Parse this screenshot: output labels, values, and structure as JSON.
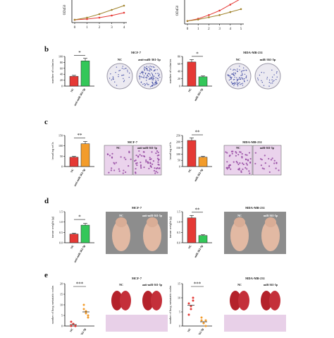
{
  "figure": {
    "panels": [
      {
        "letter": "b"
      },
      {
        "letter": "c"
      },
      {
        "letter": "d"
      },
      {
        "letter": "e"
      }
    ],
    "top_strip": {
      "ylabel_left": "OD450",
      "ylabel_right": "OD450",
      "xticks_left": [
        "0",
        "1",
        "2",
        "3",
        "4"
      ],
      "xticks_right": [
        "0",
        "1",
        "2",
        "3",
        "4",
        "5"
      ],
      "series_colors": {
        "red": "#e53935",
        "olive": "#a1842e"
      },
      "left_red": [
        0.2,
        0.25,
        0.35,
        0.5,
        0.7
      ],
      "left_olive": [
        0.2,
        0.35,
        0.6,
        0.9,
        1.2
      ],
      "right_red": [
        0.2,
        0.35,
        0.6,
        0.9,
        1.3,
        1.7
      ],
      "right_olive": [
        0.2,
        0.3,
        0.45,
        0.6,
        0.8,
        1.0
      ]
    },
    "cell_lines": {
      "left": "MCF-7",
      "right": "MDA-MB-231"
    },
    "group_labels": {
      "nc": "NC",
      "anti": "anti-miR-361-5p",
      "mimic": "miR-361-5p"
    },
    "b": {
      "left": {
        "ylabel": "number of colonies",
        "yticks": [
          "0",
          "20",
          "40",
          "60",
          "80",
          "100"
        ],
        "sig": "*"
      },
      "right": {
        "ylabel": "number of colonies",
        "yticks": [
          "0",
          "20",
          "40",
          "60",
          "80"
        ],
        "sig": "*"
      }
    },
    "c": {
      "left": {
        "ylabel": "invading cells",
        "yticks": [
          "0",
          "50",
          "100",
          "150"
        ],
        "sig": "**"
      },
      "right": {
        "ylabel": "invading cells",
        "yticks": [
          "0",
          "50",
          "100",
          "150",
          "200",
          "250"
        ],
        "sig": "**"
      }
    },
    "d": {
      "left": {
        "ylabel": "tumor weight (g)",
        "yticks": [
          "0.0",
          "0.5",
          "1.0",
          "1.5"
        ],
        "sig": "*"
      },
      "right": {
        "ylabel": "tumor weight (g)",
        "yticks": [
          "0.0",
          "0.5",
          "1.0",
          "1.5"
        ],
        "sig": "**"
      }
    },
    "e": {
      "left": {
        "ylabel": "number of lung metastatic nodes",
        "yticks": [
          "0",
          "5",
          "10",
          "15",
          "20"
        ],
        "sig": "***"
      },
      "right": {
        "ylabel": "number of lung metastatic nodes",
        "yticks": [
          "0",
          "5",
          "10",
          "15"
        ],
        "sig": "***"
      }
    },
    "colors": {
      "red": "#e53935",
      "green": "#34c759",
      "orange": "#f39c2b",
      "bar_outline": "#222222"
    }
  },
  "chart_data": [
    {
      "type": "line",
      "title": "",
      "xlabel": "",
      "ylabel": "OD450",
      "x": [
        0,
        1,
        2,
        3,
        4
      ],
      "series": [
        {
          "values": [
            0.2,
            0.25,
            0.35,
            0.5,
            0.7
          ]
        },
        {
          "values": [
            0.2,
            0.35,
            0.6,
            0.9,
            1.2
          ]
        }
      ]
    },
    {
      "type": "line",
      "title": "",
      "xlabel": "",
      "ylabel": "OD450",
      "x": [
        0,
        1,
        2,
        3,
        4,
        5
      ],
      "series": [
        {
          "values": [
            0.2,
            0.35,
            0.6,
            0.9,
            1.3,
            1.7
          ]
        },
        {
          "values": [
            0.2,
            0.3,
            0.45,
            0.6,
            0.8,
            1.0
          ]
        }
      ]
    },
    {
      "type": "bar",
      "ylabel": "number of colonies",
      "categories": [
        "NC",
        "anti-miR-361-5p"
      ],
      "values": [
        33,
        85
      ],
      "ylim": [
        0,
        100
      ]
    },
    {
      "type": "bar",
      "ylabel": "number of colonies",
      "categories": [
        "NC",
        "miR-361-5p"
      ],
      "values": [
        65,
        25
      ],
      "ylim": [
        0,
        80
      ]
    },
    {
      "type": "bar",
      "ylabel": "invading cells",
      "categories": [
        "NC",
        "anti-miR-361-5p"
      ],
      "values": [
        45,
        110
      ],
      "ylim": [
        0,
        150
      ]
    },
    {
      "type": "bar",
      "ylabel": "invading cells",
      "categories": [
        "NC",
        "miR-361-5p"
      ],
      "values": [
        210,
        75
      ],
      "ylim": [
        0,
        250
      ]
    },
    {
      "type": "bar",
      "ylabel": "tumor weight (g)",
      "categories": [
        "NC",
        "anti-miR-361-5p"
      ],
      "values": [
        0.42,
        0.85
      ],
      "ylim": [
        0,
        1.5
      ]
    },
    {
      "type": "bar",
      "ylabel": "tumor weight (g)",
      "categories": [
        "NC",
        "miR-361-5p"
      ],
      "values": [
        1.2,
        0.35
      ],
      "ylim": [
        0,
        1.5
      ]
    },
    {
      "type": "scatter",
      "ylabel": "number of lung metastatic nodes",
      "categories": [
        "NC",
        "anti-miR-361-5p"
      ],
      "series": [
        {
          "values": [
            0,
            1,
            0,
            2,
            1,
            0
          ]
        },
        {
          "values": [
            10,
            6,
            4,
            8,
            7,
            5
          ]
        }
      ],
      "ylim": [
        0,
        20
      ]
    },
    {
      "type": "scatter",
      "ylabel": "number of lung metastatic nodes",
      "categories": [
        "NC",
        "miR-361-5p"
      ],
      "series": [
        {
          "values": [
            8,
            6,
            10,
            4,
            7,
            9
          ]
        },
        {
          "values": [
            2,
            1,
            0,
            3,
            1,
            2
          ]
        }
      ],
      "ylim": [
        0,
        15
      ]
    }
  ]
}
